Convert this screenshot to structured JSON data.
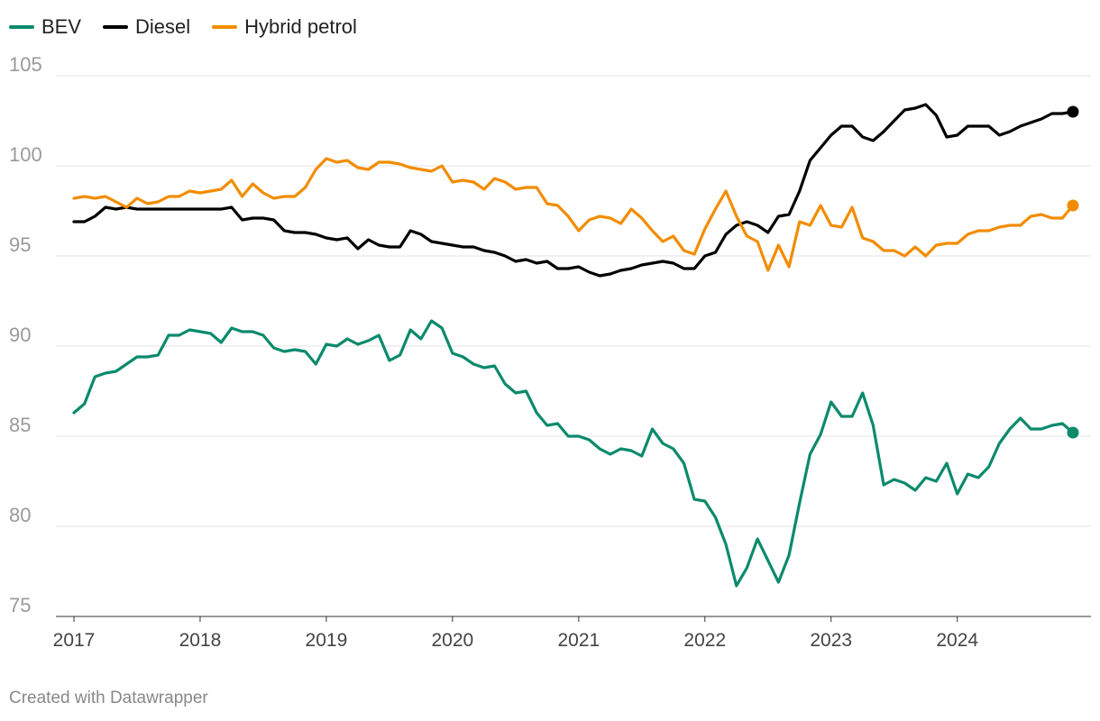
{
  "chart_data": {
    "type": "line",
    "title": "",
    "xlabel": "",
    "ylabel": "",
    "ylim": [
      75,
      105
    ],
    "yticks": [
      "75",
      "80",
      "85",
      "90",
      "95",
      "100",
      "105"
    ],
    "xticks": [
      "2017",
      "2018",
      "2019",
      "2020",
      "2021",
      "2022",
      "2023",
      "2024"
    ],
    "x_start": "2017-01",
    "x_end": "2024-12",
    "grid": true,
    "legend_position": "top-left",
    "series": [
      {
        "name": "BEV",
        "color": "#0b8a6c",
        "values": [
          86.3,
          86.8,
          88.3,
          88.5,
          88.6,
          89.0,
          89.4,
          89.4,
          89.5,
          90.6,
          90.6,
          90.9,
          90.8,
          90.7,
          90.2,
          91.0,
          90.8,
          90.8,
          90.6,
          89.9,
          89.7,
          89.8,
          89.7,
          89.0,
          90.1,
          90.0,
          90.4,
          90.1,
          90.3,
          90.6,
          89.2,
          89.5,
          90.9,
          90.4,
          91.4,
          91.0,
          89.6,
          89.4,
          89.0,
          88.8,
          88.9,
          87.9,
          87.4,
          87.5,
          86.3,
          85.6,
          85.7,
          85.0,
          85.0,
          84.8,
          84.3,
          84.0,
          84.3,
          84.2,
          83.9,
          85.4,
          84.6,
          84.3,
          83.5,
          81.5,
          81.4,
          80.5,
          79.0,
          76.7,
          77.7,
          79.3,
          78.1,
          76.9,
          78.4,
          81.3,
          84.0,
          85.1,
          86.9,
          86.1,
          86.1,
          87.4,
          85.6,
          82.3,
          82.6,
          82.4,
          82.0,
          82.7,
          82.5,
          83.5,
          81.8,
          82.9,
          82.7,
          83.3,
          84.6,
          85.4,
          86.0,
          85.4,
          85.4,
          85.6,
          85.7,
          85.2
        ]
      },
      {
        "name": "Diesel",
        "color": "#000000",
        "values": [
          96.9,
          96.9,
          97.2,
          97.7,
          97.6,
          97.7,
          97.6,
          97.6,
          97.6,
          97.6,
          97.6,
          97.6,
          97.6,
          97.6,
          97.6,
          97.7,
          97.0,
          97.1,
          97.1,
          97.0,
          96.4,
          96.3,
          96.3,
          96.2,
          96.0,
          95.9,
          96.0,
          95.4,
          95.9,
          95.6,
          95.5,
          95.5,
          96.4,
          96.2,
          95.8,
          95.7,
          95.6,
          95.5,
          95.5,
          95.3,
          95.2,
          95.0,
          94.7,
          94.8,
          94.6,
          94.7,
          94.3,
          94.3,
          94.4,
          94.1,
          93.9,
          94.0,
          94.2,
          94.3,
          94.5,
          94.6,
          94.7,
          94.6,
          94.3,
          94.3,
          95.0,
          95.2,
          96.2,
          96.7,
          96.9,
          96.7,
          96.3,
          97.2,
          97.3,
          98.6,
          100.3,
          101.0,
          101.7,
          102.2,
          102.2,
          101.6,
          101.4,
          101.9,
          102.5,
          103.1,
          103.2,
          103.4,
          102.8,
          101.6,
          101.7,
          102.2,
          102.2,
          102.2,
          101.7,
          101.9,
          102.2,
          102.4,
          102.6,
          102.9,
          102.9,
          103.0
        ]
      },
      {
        "name": "Hybrid petrol",
        "color": "#f28c00",
        "values": [
          98.2,
          98.3,
          98.2,
          98.3,
          98.0,
          97.7,
          98.2,
          97.9,
          98.0,
          98.3,
          98.3,
          98.6,
          98.5,
          98.6,
          98.7,
          99.2,
          98.3,
          99.0,
          98.5,
          98.2,
          98.3,
          98.3,
          98.8,
          99.8,
          100.4,
          100.2,
          100.3,
          99.9,
          99.8,
          100.2,
          100.2,
          100.1,
          99.9,
          99.8,
          99.7,
          100.0,
          99.1,
          99.2,
          99.1,
          98.7,
          99.3,
          99.1,
          98.7,
          98.8,
          98.8,
          97.9,
          97.8,
          97.2,
          96.4,
          97.0,
          97.2,
          97.1,
          96.8,
          97.6,
          97.1,
          96.4,
          95.8,
          96.1,
          95.3,
          95.1,
          96.5,
          97.6,
          98.6,
          97.2,
          96.1,
          95.8,
          94.2,
          95.6,
          94.4,
          96.9,
          96.7,
          97.8,
          96.7,
          96.6,
          97.7,
          96.0,
          95.8,
          95.3,
          95.3,
          95.0,
          95.5,
          95.0,
          95.6,
          95.7,
          95.7,
          96.2,
          96.4,
          96.4,
          96.6,
          96.7,
          96.7,
          97.2,
          97.3,
          97.1,
          97.1,
          97.8
        ]
      }
    ]
  },
  "footer": {
    "credit": "Created with Datawrapper"
  }
}
